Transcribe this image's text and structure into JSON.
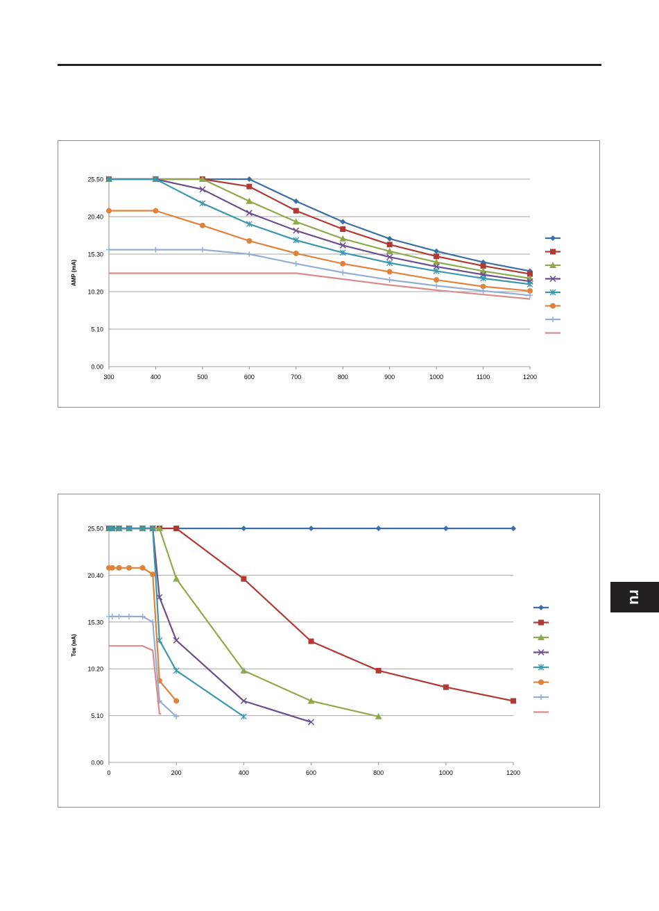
{
  "tab": {
    "label": "ru"
  },
  "chart_data": [
    {
      "type": "line",
      "title": "",
      "xlabel": "",
      "ylabel": "AMP (mA)",
      "x_ticks": [
        "300",
        "400",
        "500",
        "600",
        "700",
        "800",
        "900",
        "1000",
        "1100",
        "1200"
      ],
      "y_ticks": [
        "0.00",
        "5.10",
        "10.20",
        "15.30",
        "20.40",
        "25.50"
      ],
      "xlim": [
        300,
        1200
      ],
      "ylim": [
        0,
        25.5
      ],
      "grid": true,
      "legend": "right",
      "series": [
        {
          "color": "#3a6ea5",
          "marker": "diamond",
          "x": [
            300,
            400,
            500,
            600,
            700,
            800,
            900,
            1000,
            1100,
            1200
          ],
          "y": [
            25.5,
            25.5,
            25.5,
            25.5,
            22.5,
            19.7,
            17.4,
            15.7,
            14.2,
            13.0
          ]
        },
        {
          "color": "#b03a33",
          "marker": "square",
          "x": [
            300,
            400,
            500,
            600,
            700,
            800,
            900,
            1000,
            1100,
            1200
          ],
          "y": [
            25.5,
            25.5,
            25.5,
            24.5,
            21.2,
            18.7,
            16.6,
            15.0,
            13.7,
            12.6
          ]
        },
        {
          "color": "#8ea94b",
          "marker": "triangle",
          "x": [
            300,
            400,
            500,
            600,
            700,
            800,
            900,
            1000,
            1100,
            1200
          ],
          "y": [
            25.5,
            25.5,
            25.5,
            22.5,
            19.7,
            17.4,
            15.7,
            14.2,
            13.0,
            12.0
          ]
        },
        {
          "color": "#6a4e8c",
          "marker": "x",
          "x": [
            300,
            400,
            500,
            600,
            700,
            800,
            900,
            1000,
            1100,
            1200
          ],
          "y": [
            25.5,
            25.5,
            24.1,
            20.9,
            18.5,
            16.5,
            14.9,
            13.6,
            12.5,
            11.6
          ]
        },
        {
          "color": "#3a97ad",
          "marker": "asterisk",
          "x": [
            300,
            400,
            500,
            600,
            700,
            800,
            900,
            1000,
            1100,
            1200
          ],
          "y": [
            25.5,
            25.5,
            22.2,
            19.4,
            17.2,
            15.5,
            14.1,
            13.0,
            12.0,
            11.2
          ]
        },
        {
          "color": "#e0823a",
          "marker": "circle",
          "x": [
            300,
            400,
            500,
            600,
            700,
            800,
            900,
            1000,
            1100,
            1200
          ],
          "y": [
            21.2,
            21.2,
            19.2,
            17.1,
            15.4,
            14.0,
            12.9,
            11.8,
            10.9,
            10.3
          ]
        },
        {
          "color": "#93aed4",
          "marker": "plus",
          "x": [
            300,
            400,
            500,
            600,
            700,
            800,
            900,
            1000,
            1100,
            1200
          ],
          "y": [
            15.9,
            15.9,
            15.9,
            15.3,
            14.0,
            12.8,
            11.8,
            11.0,
            10.3,
            9.7
          ]
        },
        {
          "color": "#d98b8b",
          "marker": "none",
          "x": [
            300,
            400,
            500,
            600,
            700,
            800,
            900,
            1000,
            1100,
            1200
          ],
          "y": [
            12.7,
            12.7,
            12.7,
            12.7,
            12.7,
            11.9,
            11.1,
            10.4,
            9.8,
            9.2
          ]
        }
      ]
    },
    {
      "type": "line",
      "title": "",
      "xlabel": "",
      "ylabel": "Ток (мА)",
      "x_ticks": [
        "0",
        "200",
        "400",
        "600",
        "800",
        "1000",
        "1200"
      ],
      "y_ticks": [
        "0.00",
        "5.10",
        "10.20",
        "15.30",
        "20.40",
        "25.50"
      ],
      "xlim": [
        0,
        1200
      ],
      "ylim": [
        0,
        25.5
      ],
      "grid": true,
      "legend": "right",
      "series": [
        {
          "color": "#3a6ea5",
          "marker": "diamond",
          "x": [
            0,
            10,
            30,
            60,
            100,
            130,
            150,
            200,
            400,
            600,
            800,
            1000,
            1200
          ],
          "y": [
            25.5,
            25.5,
            25.5,
            25.5,
            25.5,
            25.5,
            25.5,
            25.5,
            25.5,
            25.5,
            25.5,
            25.5,
            25.5
          ]
        },
        {
          "color": "#b03a33",
          "marker": "square",
          "x": [
            0,
            10,
            30,
            60,
            100,
            130,
            150,
            200,
            400,
            600,
            800,
            1000,
            1200
          ],
          "y": [
            25.5,
            25.5,
            25.5,
            25.5,
            25.5,
            25.5,
            25.5,
            25.5,
            20.0,
            13.2,
            10.0,
            8.2,
            6.7
          ]
        },
        {
          "color": "#8ea94b",
          "marker": "triangle",
          "x": [
            0,
            10,
            30,
            60,
            100,
            130,
            150,
            200,
            400,
            600,
            800
          ],
          "y": [
            25.5,
            25.5,
            25.5,
            25.5,
            25.5,
            25.5,
            25.5,
            20.0,
            10.0,
            6.7,
            5.0
          ]
        },
        {
          "color": "#6a4e8c",
          "marker": "x",
          "x": [
            0,
            10,
            30,
            60,
            100,
            130,
            150,
            200,
            400,
            600
          ],
          "y": [
            25.5,
            25.5,
            25.5,
            25.5,
            25.5,
            25.5,
            18.0,
            13.3,
            6.7,
            4.4
          ]
        },
        {
          "color": "#3a97ad",
          "marker": "asterisk",
          "x": [
            0,
            10,
            30,
            60,
            100,
            130,
            150,
            200,
            400
          ],
          "y": [
            25.5,
            25.5,
            25.5,
            25.5,
            25.5,
            25.5,
            13.3,
            10.0,
            5.0
          ]
        },
        {
          "color": "#e0823a",
          "marker": "circle",
          "x": [
            0,
            10,
            30,
            60,
            100,
            130,
            150,
            200
          ],
          "y": [
            21.2,
            21.2,
            21.2,
            21.2,
            21.2,
            20.5,
            8.9,
            6.7
          ]
        },
        {
          "color": "#93aed4",
          "marker": "plus",
          "x": [
            0,
            10,
            30,
            60,
            100,
            130,
            150,
            200
          ],
          "y": [
            15.9,
            15.9,
            15.9,
            15.9,
            15.9,
            15.3,
            6.7,
            5.0
          ]
        },
        {
          "color": "#d98b8b",
          "marker": "none",
          "x": [
            0,
            10,
            30,
            60,
            100,
            130,
            150,
            155
          ],
          "y": [
            12.7,
            12.7,
            12.7,
            12.7,
            12.7,
            12.2,
            5.3,
            5.3
          ]
        }
      ]
    }
  ]
}
